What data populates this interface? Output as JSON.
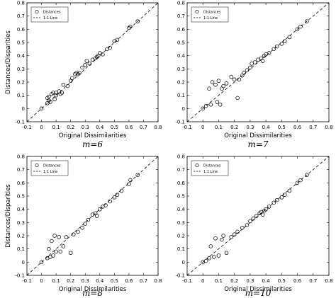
{
  "legend": {
    "point_label": "Distances",
    "line_label": "1:1 Line"
  },
  "chart_data": [
    {
      "type": "scatter",
      "caption": "m=6",
      "xlabel": "Original Dissimilarities",
      "ylabel": "Distances/Disparities",
      "xlim": [
        -0.1,
        0.8
      ],
      "ylim": [
        -0.1,
        0.8
      ],
      "xticks": [
        "-0.1",
        "0",
        "0.1",
        "0.2",
        "0.3",
        "0.4",
        "0.5",
        "0.6",
        "0.7",
        "0.8"
      ],
      "yticks": [
        "-0.1",
        "0",
        "0.1",
        "0.2",
        "0.3",
        "0.4",
        "0.5",
        "0.6",
        "0.7",
        "0.8"
      ],
      "legend_position": "top-left",
      "grid": false,
      "series": [
        {
          "name": "Distances",
          "marker": "open-circle",
          "x": [
            0.0,
            0.04,
            0.04,
            0.05,
            0.05,
            0.06,
            0.07,
            0.08,
            0.09,
            0.1,
            0.1,
            0.12,
            0.13,
            0.14,
            0.15,
            0.18,
            0.2,
            0.21,
            0.23,
            0.24,
            0.25,
            0.26,
            0.28,
            0.3,
            0.31,
            0.33,
            0.35,
            0.37,
            0.38,
            0.39,
            0.4,
            0.42,
            0.45,
            0.47,
            0.5,
            0.52,
            0.6,
            0.61,
            0.66
          ],
          "y": [
            0.0,
            0.04,
            0.08,
            0.06,
            0.09,
            0.05,
            0.11,
            0.12,
            0.07,
            0.12,
            0.1,
            0.13,
            0.11,
            0.12,
            0.18,
            0.17,
            0.21,
            0.23,
            0.26,
            0.27,
            0.26,
            0.27,
            0.31,
            0.33,
            0.36,
            0.34,
            0.37,
            0.38,
            0.39,
            0.4,
            0.42,
            0.41,
            0.45,
            0.46,
            0.51,
            0.52,
            0.61,
            0.62,
            0.66
          ]
        },
        {
          "name": "1:1 Line",
          "style": "dashed",
          "x": [
            -0.1,
            0.8
          ],
          "y": [
            -0.1,
            0.8
          ]
        }
      ]
    },
    {
      "type": "scatter",
      "caption": "m=7",
      "xlabel": "Original Dissimilarities",
      "ylabel": "",
      "xlim": [
        -0.1,
        0.8
      ],
      "ylim": [
        -0.1,
        0.8
      ],
      "xticks": [
        "-0.1",
        "0",
        "0.1",
        "0.2",
        "0.3",
        "0.4",
        "0.5",
        "0.6",
        "0.7",
        "0.8"
      ],
      "yticks": [
        "-0.1",
        "0",
        "0.1",
        "0.2",
        "0.3",
        "0.4",
        "0.5",
        "0.6",
        "0.7",
        "0.8"
      ],
      "legend_position": "top-left",
      "grid": false,
      "series": [
        {
          "name": "Distances",
          "marker": "open-circle",
          "x": [
            0.0,
            0.02,
            0.04,
            0.05,
            0.06,
            0.08,
            0.09,
            0.1,
            0.11,
            0.12,
            0.13,
            0.15,
            0.18,
            0.2,
            0.22,
            0.23,
            0.25,
            0.26,
            0.28,
            0.3,
            0.31,
            0.33,
            0.35,
            0.37,
            0.38,
            0.39,
            0.4,
            0.42,
            0.45,
            0.47,
            0.5,
            0.52,
            0.55,
            0.6,
            0.62,
            0.66
          ],
          "y": [
            0.0,
            0.02,
            0.15,
            0.03,
            0.2,
            0.18,
            0.05,
            0.21,
            0.03,
            0.15,
            0.17,
            0.19,
            0.24,
            0.22,
            0.08,
            0.22,
            0.25,
            0.27,
            0.29,
            0.31,
            0.34,
            0.35,
            0.37,
            0.38,
            0.36,
            0.4,
            0.41,
            0.42,
            0.45,
            0.47,
            0.49,
            0.51,
            0.54,
            0.6,
            0.62,
            0.66
          ]
        },
        {
          "name": "1:1 Line",
          "style": "dashed",
          "x": [
            -0.1,
            0.8
          ],
          "y": [
            -0.1,
            0.8
          ]
        }
      ]
    },
    {
      "type": "scatter",
      "caption": "m=8",
      "xlabel": "Original Dissimilarities",
      "ylabel": "Distances/Disparities",
      "xlim": [
        -0.1,
        0.8
      ],
      "ylim": [
        -0.1,
        0.8
      ],
      "xticks": [
        "-0.1",
        "0",
        "0.1",
        "0.2",
        "0.3",
        "0.4",
        "0.5",
        "0.6",
        "0.7",
        "0.8"
      ],
      "yticks": [
        "-0.1",
        "0",
        "0.1",
        "0.2",
        "0.3",
        "0.4",
        "0.5",
        "0.6",
        "0.7",
        "0.8"
      ],
      "legend_position": "top-left",
      "grid": false,
      "series": [
        {
          "name": "Distances",
          "marker": "open-circle",
          "x": [
            0.0,
            0.04,
            0.05,
            0.06,
            0.07,
            0.08,
            0.09,
            0.1,
            0.12,
            0.13,
            0.15,
            0.17,
            0.2,
            0.22,
            0.25,
            0.28,
            0.3,
            0.32,
            0.35,
            0.37,
            0.38,
            0.4,
            0.42,
            0.44,
            0.47,
            0.5,
            0.52,
            0.55,
            0.6,
            0.61,
            0.66
          ],
          "y": [
            0.0,
            0.03,
            0.1,
            0.04,
            0.16,
            0.05,
            0.2,
            0.08,
            0.19,
            0.08,
            0.12,
            0.19,
            0.07,
            0.21,
            0.23,
            0.26,
            0.29,
            0.32,
            0.36,
            0.37,
            0.35,
            0.4,
            0.42,
            0.43,
            0.46,
            0.49,
            0.51,
            0.54,
            0.59,
            0.62,
            0.66
          ]
        },
        {
          "name": "1:1 Line",
          "style": "dashed",
          "x": [
            -0.1,
            0.8
          ],
          "y": [
            -0.1,
            0.8
          ]
        }
      ]
    },
    {
      "type": "scatter",
      "caption": "m=10",
      "xlabel": "Original Dissimilarities",
      "ylabel": "",
      "xlim": [
        -0.1,
        0.8
      ],
      "ylim": [
        -0.1,
        0.8
      ],
      "xticks": [
        "-0.1",
        "0",
        "0.1",
        "0.2",
        "0.3",
        "0.4",
        "0.5",
        "0.6",
        "0.7",
        "0.8"
      ],
      "yticks": [
        "-0.1",
        "0",
        "0.1",
        "0.2",
        "0.3",
        "0.4",
        "0.5",
        "0.6",
        "0.7",
        "0.8"
      ],
      "legend_position": "top-left",
      "grid": false,
      "series": [
        {
          "name": "Distances",
          "marker": "open-circle",
          "x": [
            0.0,
            0.02,
            0.04,
            0.05,
            0.07,
            0.08,
            0.1,
            0.12,
            0.13,
            0.15,
            0.18,
            0.2,
            0.22,
            0.25,
            0.28,
            0.3,
            0.32,
            0.34,
            0.36,
            0.37,
            0.38,
            0.39,
            0.4,
            0.42,
            0.45,
            0.47,
            0.5,
            0.52,
            0.55,
            0.6,
            0.62,
            0.66
          ],
          "y": [
            0.0,
            0.01,
            0.03,
            0.12,
            0.04,
            0.18,
            0.05,
            0.17,
            0.2,
            0.07,
            0.19,
            0.21,
            0.23,
            0.26,
            0.28,
            0.31,
            0.33,
            0.35,
            0.37,
            0.38,
            0.36,
            0.39,
            0.4,
            0.42,
            0.45,
            0.47,
            0.49,
            0.51,
            0.54,
            0.6,
            0.62,
            0.66
          ]
        },
        {
          "name": "1:1 Line",
          "style": "dashed",
          "x": [
            -0.1,
            0.8
          ],
          "y": [
            -0.1,
            0.8
          ]
        }
      ]
    }
  ]
}
